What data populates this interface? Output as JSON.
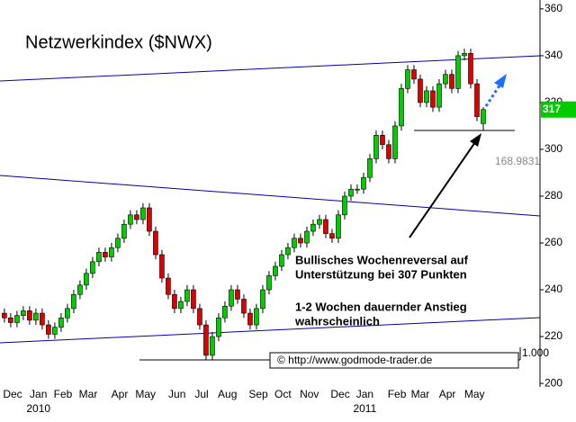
{
  "chart_data": {
    "type": "candlestick",
    "title": "Netzwerkindex ($NWX)",
    "xlim": [
      -0.7,
      85
    ],
    "xticks": [
      {
        "value": 1.3,
        "label": "Dec"
      },
      {
        "value": 5.4,
        "label": "Jan"
      },
      {
        "value": 9.3,
        "label": "Feb"
      },
      {
        "value": 13.3,
        "label": "Mar"
      },
      {
        "value": 18.3,
        "label": "Apr"
      },
      {
        "value": 22.4,
        "label": "May"
      },
      {
        "value": 27.4,
        "label": "Jun"
      },
      {
        "value": 31.3,
        "label": "Jul"
      },
      {
        "value": 35.4,
        "label": "Aug"
      },
      {
        "value": 40.3,
        "label": "Sep"
      },
      {
        "value": 44.2,
        "label": "Oct"
      },
      {
        "value": 48.4,
        "label": "Nov"
      },
      {
        "value": 53.3,
        "label": "Dec"
      },
      {
        "value": 57.2,
        "label": "Jan"
      },
      {
        "value": 62.3,
        "label": "Feb"
      },
      {
        "value": 66,
        "label": "Mar"
      },
      {
        "value": 70.3,
        "label": "Apr"
      },
      {
        "value": 74.6,
        "label": "May"
      }
    ],
    "year_labels": [
      {
        "value": 5.4,
        "label": "2010"
      },
      {
        "value": 57.2,
        "label": "2011"
      }
    ],
    "ylim": [
      198.5,
      363.8
    ],
    "yticks": [
      200,
      220,
      240,
      260,
      280,
      300,
      320,
      340,
      360
    ],
    "up_color": "#00cc00",
    "down_color": "#dd0000",
    "open": [
      230,
      228,
      226,
      229,
      231,
      227,
      230,
      225,
      221,
      224,
      228,
      232,
      238,
      242,
      247,
      252,
      256,
      254,
      258,
      262,
      268,
      272,
      270,
      275,
      265,
      255,
      245,
      238,
      232,
      235,
      240,
      232,
      225,
      212,
      220,
      228,
      233,
      240,
      236,
      230,
      225,
      232,
      240,
      246,
      250,
      255,
      258,
      262,
      260,
      265,
      268,
      270,
      264,
      262,
      272,
      280,
      283,
      283,
      288,
      296,
      306,
      302,
      296,
      310,
      326,
      334,
      330,
      320,
      325,
      318,
      328,
      332,
      326,
      340,
      341,
      328,
      311
    ],
    "high": [
      232,
      230,
      231,
      233,
      233,
      232,
      232,
      227,
      226,
      230,
      234,
      240,
      244,
      249,
      254,
      258,
      258,
      260,
      264,
      270,
      274,
      274,
      277,
      277,
      267,
      257,
      247,
      240,
      237,
      242,
      242,
      234,
      227,
      222,
      230,
      235,
      242,
      242,
      238,
      232,
      234,
      242,
      248,
      252,
      257,
      260,
      264,
      264,
      267,
      270,
      272,
      272,
      266,
      274,
      282,
      285,
      285,
      290,
      298,
      308,
      308,
      304,
      312,
      328,
      336,
      336,
      332,
      327,
      327,
      330,
      334,
      334,
      342,
      343,
      343,
      330,
      318
    ],
    "low": [
      226,
      224,
      224,
      227,
      225,
      225,
      223,
      219,
      219,
      222,
      226,
      230,
      236,
      240,
      245,
      250,
      252,
      252,
      256,
      260,
      266,
      268,
      268,
      263,
      253,
      243,
      236,
      230,
      230,
      233,
      230,
      223,
      210,
      210,
      218,
      226,
      231,
      234,
      228,
      223,
      223,
      230,
      238,
      244,
      248,
      253,
      256,
      258,
      258,
      263,
      266,
      262,
      260,
      260,
      270,
      278,
      281,
      281,
      286,
      294,
      300,
      294,
      294,
      308,
      324,
      328,
      318,
      318,
      316,
      316,
      326,
      324,
      324,
      338,
      326,
      312,
      308
    ],
    "close": [
      228,
      226,
      229,
      231,
      227,
      230,
      225,
      221,
      224,
      228,
      232,
      238,
      242,
      247,
      252,
      256,
      254,
      258,
      262,
      268,
      272,
      270,
      275,
      265,
      255,
      245,
      238,
      232,
      235,
      240,
      232,
      225,
      212,
      220,
      228,
      233,
      240,
      236,
      230,
      225,
      232,
      240,
      246,
      250,
      255,
      258,
      262,
      260,
      265,
      268,
      270,
      264,
      262,
      272,
      280,
      283,
      283,
      288,
      296,
      306,
      302,
      296,
      310,
      326,
      334,
      330,
      320,
      325,
      318,
      328,
      332,
      326,
      340,
      341,
      328,
      314,
      317
    ],
    "last_value": 317,
    "indicator_label": "168.9831",
    "scale_label": "1.000",
    "annotations": [
      "Bullisches Wochenreversal auf",
      "Unterstützung bei 307 Punkten",
      "1-2 Wochen dauernder Anstieg",
      "wahrscheinlich"
    ],
    "source": "© http://www.godmode-trader.de"
  }
}
